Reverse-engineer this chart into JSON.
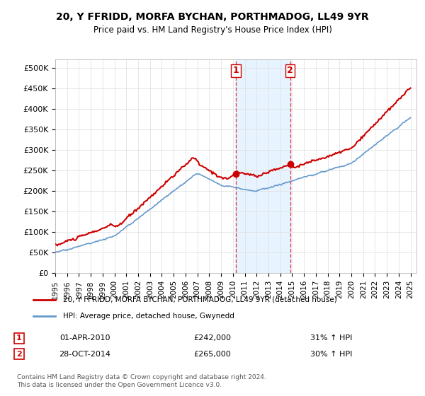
{
  "title": "20, Y FFRIDD, MORFA BYCHAN, PORTHMADOG, LL49 9YR",
  "subtitle": "Price paid vs. HM Land Registry's House Price Index (HPI)",
  "ylabel_ticks": [
    "£0",
    "£50K",
    "£100K",
    "£150K",
    "£200K",
    "£250K",
    "£300K",
    "£350K",
    "£400K",
    "£450K",
    "£500K"
  ],
  "ytick_values": [
    0,
    50000,
    100000,
    150000,
    200000,
    250000,
    300000,
    350000,
    400000,
    450000,
    500000
  ],
  "ylim": [
    0,
    520000
  ],
  "xlim_start": 1995.0,
  "xlim_end": 2025.5,
  "red_line_color": "#cc0000",
  "blue_line_color": "#6699cc",
  "shade_color": "#ddeeff",
  "marker1_x": 2010.25,
  "marker2_x": 2014.83,
  "marker1_y": 242000,
  "marker2_y": 265000,
  "sale1_date": "01-APR-2010",
  "sale1_price": "£242,000",
  "sale1_hpi": "31% ↑ HPI",
  "sale2_date": "28-OCT-2014",
  "sale2_price": "£265,000",
  "sale2_hpi": "30% ↑ HPI",
  "legend_red": "20, Y FFRIDD, MORFA BYCHAN, PORTHMADOG, LL49 9YR (detached house)",
  "legend_blue": "HPI: Average price, detached house, Gwynedd",
  "footnote": "Contains HM Land Registry data © Crown copyright and database right 2024.\nThis data is licensed under the Open Government Licence v3.0.",
  "xtick_years": [
    1995,
    1996,
    1997,
    1998,
    1999,
    2000,
    2001,
    2002,
    2003,
    2004,
    2005,
    2006,
    2007,
    2008,
    2009,
    2010,
    2011,
    2012,
    2013,
    2014,
    2015,
    2016,
    2017,
    2018,
    2019,
    2020,
    2021,
    2022,
    2023,
    2024,
    2025
  ]
}
